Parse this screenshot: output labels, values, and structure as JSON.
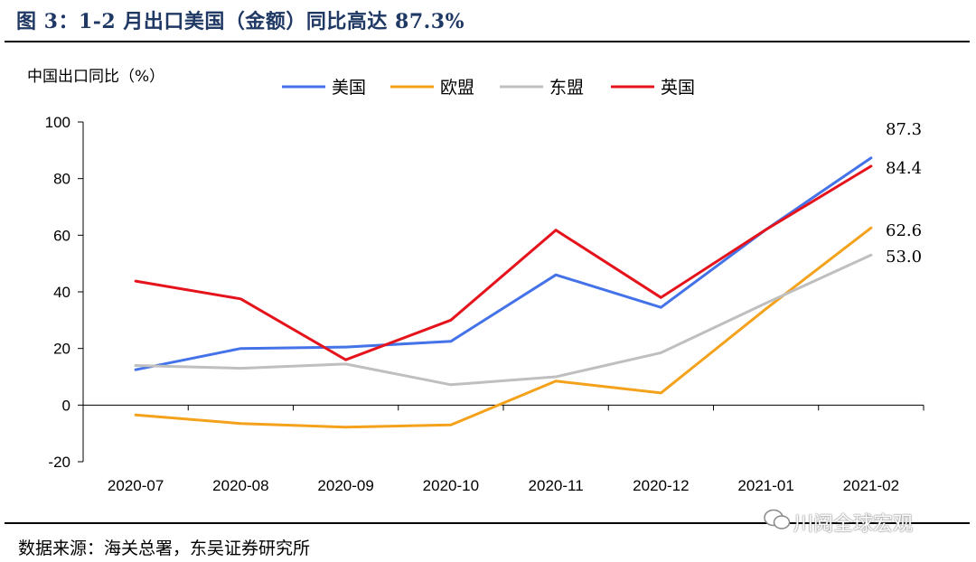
{
  "header": {
    "title": "图 3：1-2 月出口美国（金额）同比高达 87.3%"
  },
  "footer": {
    "source": "数据来源：海关总署，东吴证券研究所",
    "watermark": "川阅全球宏观"
  },
  "chart_data": {
    "type": "line",
    "ylabel": "中国出口同比（%）",
    "ylim": [
      -20,
      100
    ],
    "yticks": [
      -20,
      0,
      20,
      40,
      60,
      80,
      100
    ],
    "categories": [
      "2020-07",
      "2020-08",
      "2020-09",
      "2020-10",
      "2020-11",
      "2020-12",
      "2021-01",
      "2021-02"
    ],
    "legend_position": "top",
    "grid": false,
    "series": [
      {
        "name": "美国",
        "color": "#4472e8",
        "values": [
          12.5,
          20.0,
          20.5,
          22.5,
          46.0,
          34.5,
          62.0,
          87.3
        ]
      },
      {
        "name": "欧盟",
        "color": "#f4a21c",
        "values": [
          -3.5,
          -6.5,
          -7.8,
          -7.0,
          8.5,
          4.3,
          34.0,
          62.6
        ]
      },
      {
        "name": "东盟",
        "color": "#bfbfbf",
        "values": [
          14.0,
          13.0,
          14.5,
          7.2,
          10.0,
          18.5,
          36.0,
          53.0
        ]
      },
      {
        "name": "英国",
        "color": "#e5131b",
        "values": [
          43.8,
          37.5,
          16.0,
          30.0,
          61.8,
          38.0,
          62.0,
          84.4
        ]
      }
    ],
    "annotations": [
      {
        "text": "87.3",
        "value": 87.3,
        "series": "美国"
      },
      {
        "text": "84.4",
        "value": 84.4,
        "series": "英国"
      },
      {
        "text": "62.6",
        "value": 62.6,
        "series": "欧盟"
      },
      {
        "text": "53.0",
        "value": 53.0,
        "series": "东盟"
      }
    ]
  }
}
